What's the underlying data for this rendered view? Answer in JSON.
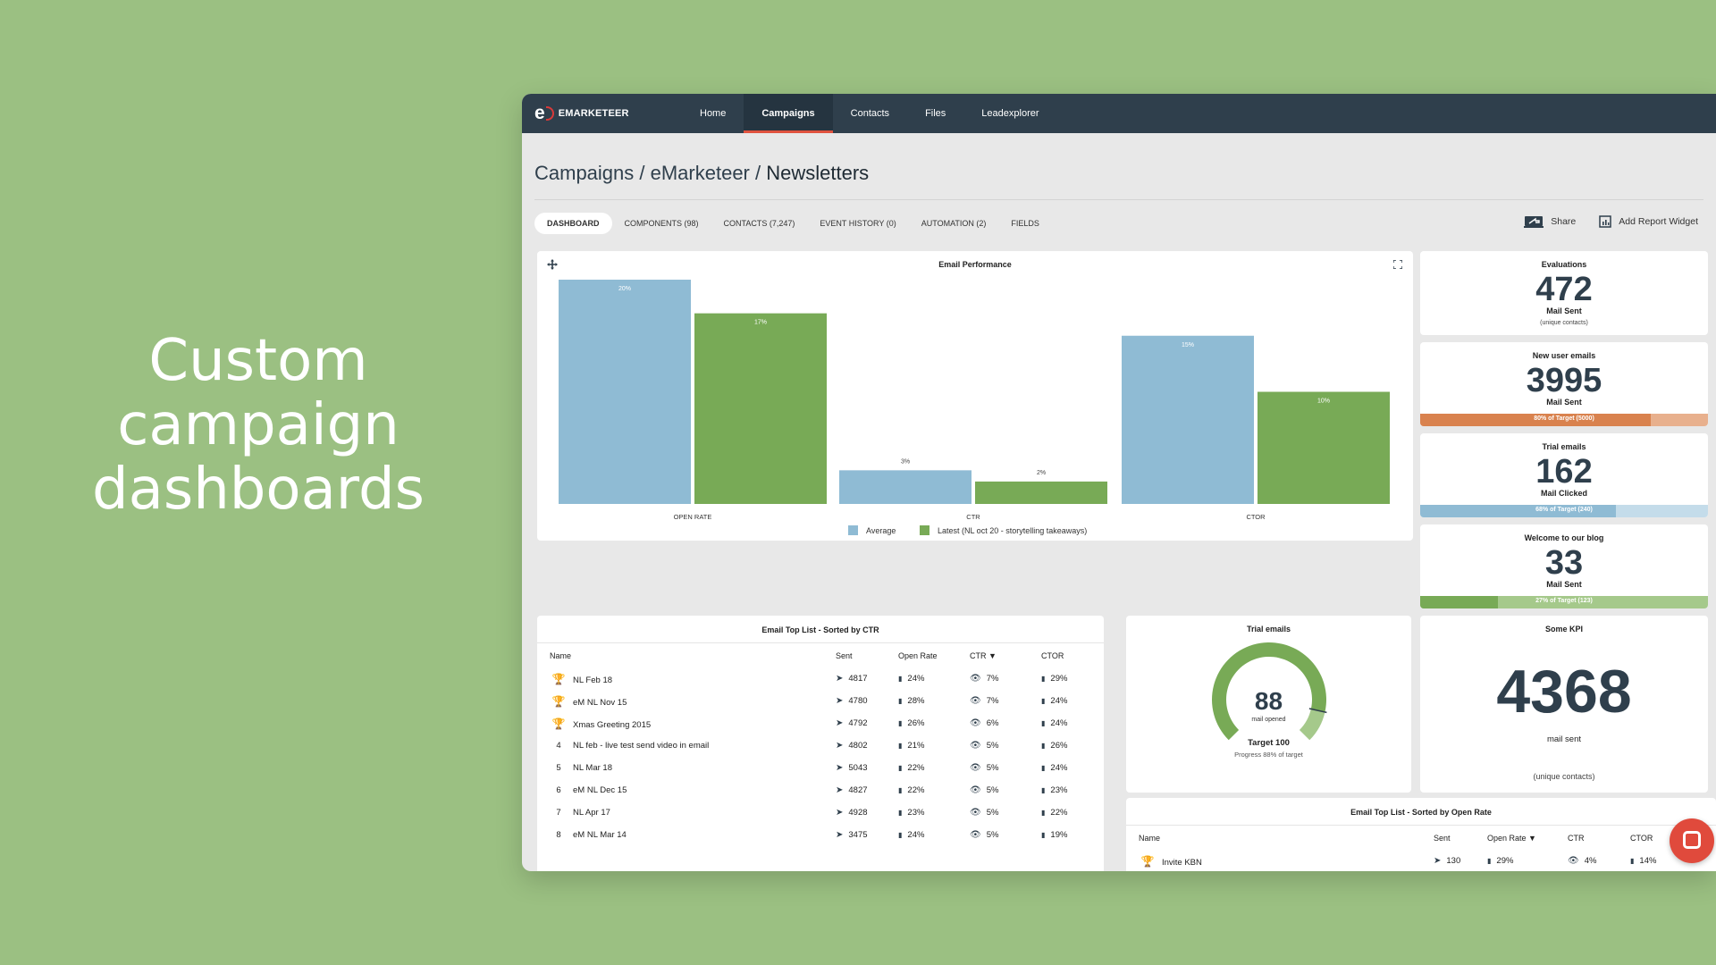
{
  "headline": {
    "line1": "Custom campaign",
    "line2": "dashboards"
  },
  "nav": {
    "logo_mark": "e",
    "logo_text": "EMARKETEER",
    "items": [
      "Home",
      "Campaigns",
      "Contacts",
      "Files",
      "Leadexplorer"
    ],
    "active": "Campaigns"
  },
  "breadcrumb": {
    "part1": "Campaigns / eMarketeer / ",
    "last": "Newsletters"
  },
  "tabs": [
    "DASHBOARD",
    "COMPONENTS (98)",
    "CONTACTS (7,247)",
    "EVENT HISTORY (0)",
    "AUTOMATION (2)",
    "FIELDS"
  ],
  "toolbar": {
    "share": "Share",
    "add_widget": "Add Report Widget"
  },
  "chart_data": {
    "type": "bar",
    "title": "Email Performance",
    "categories": [
      "OPEN RATE",
      "CTR",
      "CTOR"
    ],
    "series": [
      {
        "name": "Average",
        "color": "#8fbbd4",
        "values": [
          20,
          3,
          15
        ],
        "labels": [
          "20%",
          "3%",
          "15%"
        ]
      },
      {
        "name": "Latest (NL oct 20 - storytelling takeaways)",
        "color": "#78aa56",
        "values": [
          17,
          2,
          10
        ],
        "labels": [
          "17%",
          "2%",
          "10%"
        ]
      }
    ],
    "ylim": [
      0,
      20
    ],
    "legend": "bottom-center"
  },
  "kpis": [
    {
      "title": "Evaluations",
      "value": "472",
      "sub": "Mail Sent",
      "small": "(unique contacts)"
    },
    {
      "title": "New user emails",
      "value": "3995",
      "sub": "Mail Sent",
      "progress_label": "80% of Target (5000)",
      "progress": 0.8,
      "color": "#d9824e",
      "track": "#e8b08d"
    },
    {
      "title": "Trial emails",
      "value": "162",
      "sub": "Mail Clicked",
      "progress_label": "68% of Target (240)",
      "progress": 0.68,
      "color": "#8fbbd4",
      "track": "#c4dcea"
    },
    {
      "title": "Welcome to our blog",
      "value": "33",
      "sub": "Mail Sent",
      "progress_label": "27% of Target (123)",
      "progress": 0.27,
      "color": "#78aa56",
      "track": "#a5c98b"
    }
  ],
  "gauge": {
    "title": "Trial emails",
    "value": "88",
    "unit": "mail opened",
    "target": "Target 100",
    "progress_text": "Progress 88% of target",
    "fraction": 0.88
  },
  "big_kpi": {
    "title": "Some KPI",
    "value": "4368",
    "sub": "mail sent",
    "small": "(unique contacts)"
  },
  "ctr_table": {
    "title": "Email Top List - Sorted by CTR",
    "headers": [
      "Name",
      "Sent",
      "Open Rate",
      "CTR ▼",
      "CTOR"
    ],
    "rows": [
      {
        "rank": "trophy-gold",
        "name": "NL Feb 18",
        "sent": "4817",
        "open": "24%",
        "ctr": "7%",
        "ctor": "29%"
      },
      {
        "rank": "trophy-silver",
        "name": "eM NL Nov 15",
        "sent": "4780",
        "open": "28%",
        "ctr": "7%",
        "ctor": "24%"
      },
      {
        "rank": "trophy-bronze",
        "name": "Xmas Greeting 2015",
        "sent": "4792",
        "open": "26%",
        "ctr": "6%",
        "ctor": "24%"
      },
      {
        "rank": "4",
        "name": "NL feb - live test send video in email",
        "sent": "4802",
        "open": "21%",
        "ctr": "5%",
        "ctor": "26%"
      },
      {
        "rank": "5",
        "name": "NL Mar 18",
        "sent": "5043",
        "open": "22%",
        "ctr": "5%",
        "ctor": "24%"
      },
      {
        "rank": "6",
        "name": "eM NL Dec 15",
        "sent": "4827",
        "open": "22%",
        "ctr": "5%",
        "ctor": "23%"
      },
      {
        "rank": "7",
        "name": "NL Apr 17",
        "sent": "4928",
        "open": "23%",
        "ctr": "5%",
        "ctor": "22%"
      },
      {
        "rank": "8",
        "name": "eM NL Mar 14",
        "sent": "3475",
        "open": "24%",
        "ctr": "5%",
        "ctor": "19%"
      }
    ]
  },
  "open_table": {
    "title": "Email Top List - Sorted by Open Rate",
    "headers": [
      "Name",
      "Sent",
      "Open Rate ▼",
      "CTR",
      "CTOR"
    ],
    "rows": [
      {
        "rank": "trophy-gold",
        "name": "Invite KBN",
        "sent": "130",
        "open": "29%",
        "ctr": "4%",
        "ctor": "14%"
      }
    ]
  }
}
